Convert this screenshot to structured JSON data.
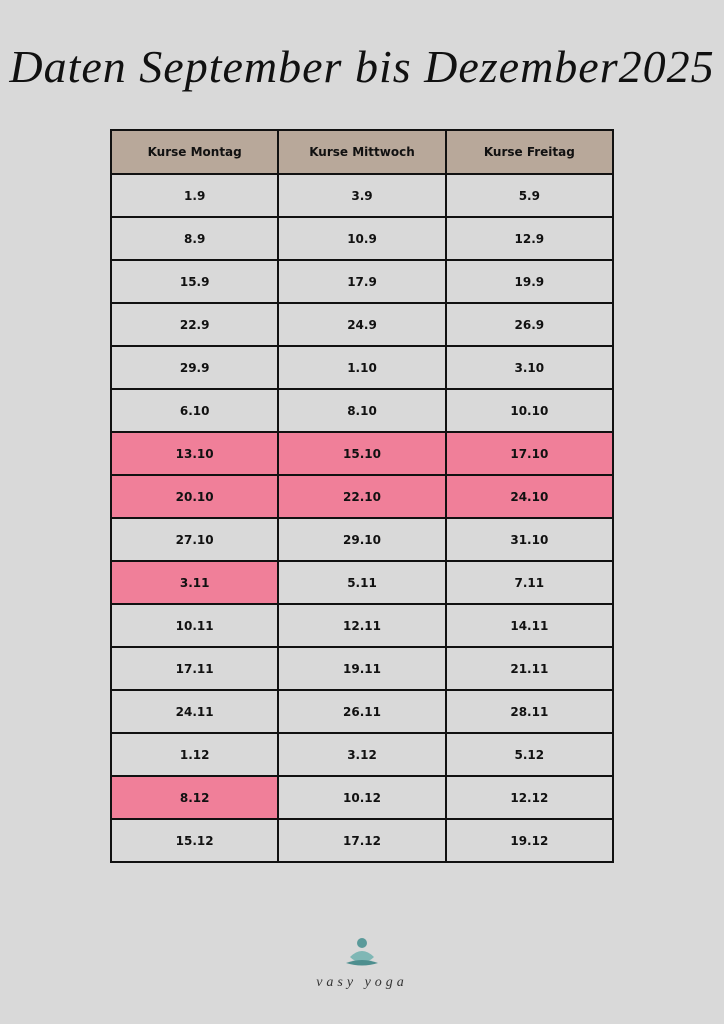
{
  "title": "Daten September bis Dezember2025",
  "table": {
    "header": [
      "Kurse Montag",
      "Kurse Mittwoch",
      "Kurse Freitag"
    ],
    "header_color": "#b8a89a",
    "highlight_color": "#f07f99",
    "rows": [
      [
        {
          "text": "1.9",
          "highlight": false
        },
        {
          "text": "3.9",
          "highlight": false
        },
        {
          "text": "5.9",
          "highlight": false
        }
      ],
      [
        {
          "text": "8.9",
          "highlight": false
        },
        {
          "text": "10.9",
          "highlight": false
        },
        {
          "text": "12.9",
          "highlight": false
        }
      ],
      [
        {
          "text": "15.9",
          "highlight": false
        },
        {
          "text": "17.9",
          "highlight": false
        },
        {
          "text": "19.9",
          "highlight": false
        }
      ],
      [
        {
          "text": "22.9",
          "highlight": false
        },
        {
          "text": "24.9",
          "highlight": false
        },
        {
          "text": "26.9",
          "highlight": false
        }
      ],
      [
        {
          "text": "29.9",
          "highlight": false
        },
        {
          "text": "1.10",
          "highlight": false
        },
        {
          "text": "3.10",
          "highlight": false
        }
      ],
      [
        {
          "text": "6.10",
          "highlight": false
        },
        {
          "text": "8.10",
          "highlight": false
        },
        {
          "text": "10.10",
          "highlight": false
        }
      ],
      [
        {
          "text": "13.10",
          "highlight": true
        },
        {
          "text": "15.10",
          "highlight": true
        },
        {
          "text": "17.10",
          "highlight": true
        }
      ],
      [
        {
          "text": "20.10",
          "highlight": true
        },
        {
          "text": "22.10",
          "highlight": true
        },
        {
          "text": "24.10",
          "highlight": true
        }
      ],
      [
        {
          "text": "27.10",
          "highlight": false
        },
        {
          "text": "29.10",
          "highlight": false
        },
        {
          "text": "31.10",
          "highlight": false
        }
      ],
      [
        {
          "text": "3.11",
          "highlight": true
        },
        {
          "text": "5.11",
          "highlight": false
        },
        {
          "text": "7.11",
          "highlight": false
        }
      ],
      [
        {
          "text": "10.11",
          "highlight": false
        },
        {
          "text": "12.11",
          "highlight": false
        },
        {
          "text": "14.11",
          "highlight": false
        }
      ],
      [
        {
          "text": "17.11",
          "highlight": false
        },
        {
          "text": "19.11",
          "highlight": false
        },
        {
          "text": "21.11",
          "highlight": false
        }
      ],
      [
        {
          "text": "24.11",
          "highlight": false
        },
        {
          "text": "26.11",
          "highlight": false
        },
        {
          "text": "28.11",
          "highlight": false
        }
      ],
      [
        {
          "text": "1.12",
          "highlight": false
        },
        {
          "text": "3.12",
          "highlight": false
        },
        {
          "text": "5.12",
          "highlight": false
        }
      ],
      [
        {
          "text": "8.12",
          "highlight": true
        },
        {
          "text": "10.12",
          "highlight": false
        },
        {
          "text": "12.12",
          "highlight": false
        }
      ],
      [
        {
          "text": "15.12",
          "highlight": false
        },
        {
          "text": "17.12",
          "highlight": false
        },
        {
          "text": "19.12",
          "highlight": false
        }
      ]
    ]
  },
  "logo": {
    "text": "vasy yoga"
  }
}
